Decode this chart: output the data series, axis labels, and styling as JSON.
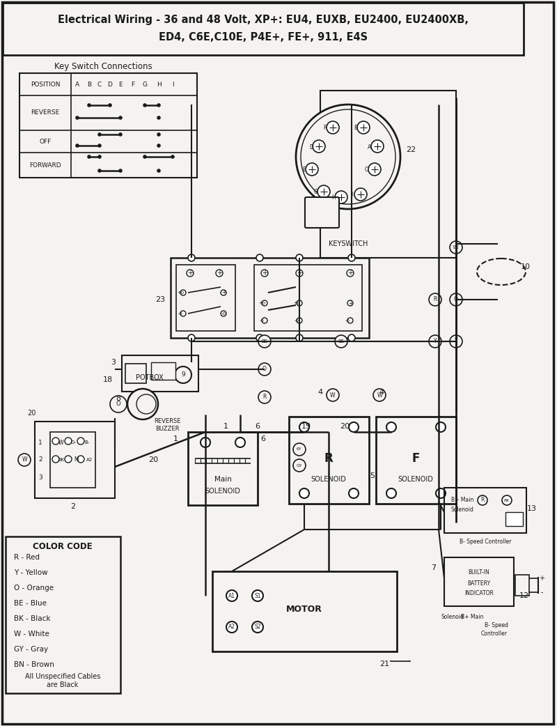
{
  "title_line1": "Electrical Wiring - 36 and 48 Volt, XP+: EU4, EUXB, EU2400, EU2400XB,",
  "title_line2": "ED4, C6E,C10E, P4E+, FE+, 911, E4S",
  "bg_color": "#f5f3f0",
  "line_color": "#1a1a1a",
  "key_switch_title": "Key Switch Connections",
  "color_code_title": "COLOR CODE",
  "color_codes": [
    "R - Red",
    "Y - Yellow",
    "O - Orange",
    "BE - Blue",
    "BK - Black",
    "W - White",
    "GY - Gray",
    "BN - Brown"
  ],
  "color_note": "All Unspecified Cables\nare Black"
}
